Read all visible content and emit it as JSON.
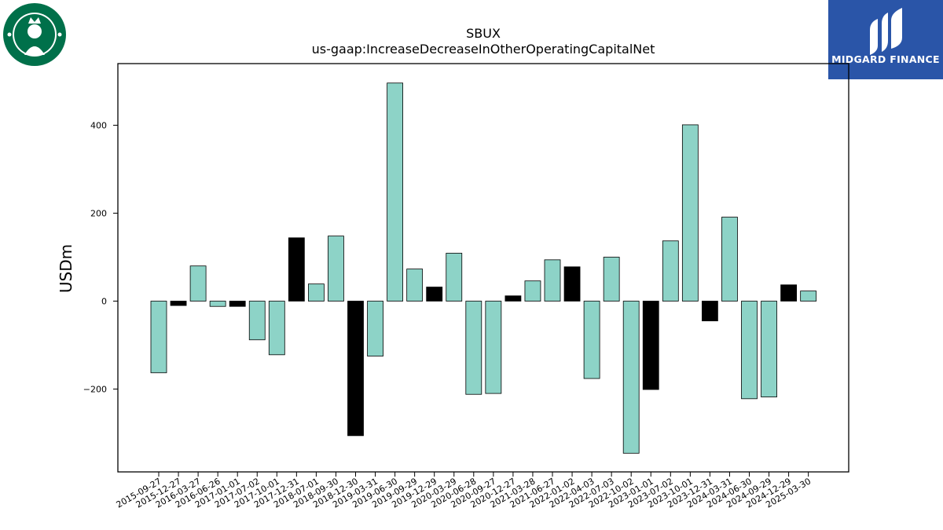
{
  "branding": {
    "left_logo": "starbucks-siren-logo",
    "right_logo": {
      "text": "MIDGARD FINANCE",
      "icon": "midgard-mark-icon",
      "background": "#2a55a8"
    },
    "left_logo_color": "#00704a"
  },
  "chart_data": {
    "type": "bar",
    "title": "SBUX",
    "subtitle": "us-gaap:IncreaseDecreaseInOtherOperatingCapitalNet",
    "xlabel": "",
    "ylabel": "USDm",
    "ylim": [
      -390,
      530
    ],
    "yticks": [
      -200,
      0,
      200,
      400
    ],
    "ytick_labels": [
      "−200",
      "0",
      "200",
      "400"
    ],
    "grid": false,
    "colors": {
      "default": "#8dd3c7",
      "highlight": "#000000",
      "edge": "#000000"
    },
    "categories": [
      "2015-09-27",
      "2015-12-27",
      "2016-03-27",
      "2016-06-26",
      "2017-01-01",
      "2017-07-02",
      "2017-10-01",
      "2017-12-31",
      "2018-07-01",
      "2018-09-30",
      "2018-12-30",
      "2019-03-31",
      "2019-06-30",
      "2019-09-29",
      "2019-12-29",
      "2020-03-29",
      "2020-06-28",
      "2020-09-27",
      "2020-12-27",
      "2021-03-28",
      "2021-06-27",
      "2022-01-02",
      "2022-04-03",
      "2022-07-03",
      "2022-10-02",
      "2023-01-01",
      "2023-07-02",
      "2023-10-01",
      "2023-12-31",
      "2024-03-31",
      "2024-06-30",
      "2024-09-29",
      "2024-12-29",
      "2025-03-30"
    ],
    "values": [
      -163,
      -10,
      80,
      -12,
      -12,
      -88,
      -122,
      144,
      39,
      148,
      -306,
      -125,
      496,
      73,
      32,
      109,
      -212,
      -210,
      12,
      46,
      94,
      78,
      -176,
      100,
      -346,
      -201,
      137,
      401,
      -45,
      191,
      -222,
      -218,
      37,
      23
    ],
    "highlight": [
      false,
      true,
      false,
      false,
      true,
      false,
      false,
      true,
      false,
      false,
      true,
      false,
      false,
      false,
      true,
      false,
      false,
      false,
      true,
      false,
      false,
      true,
      false,
      false,
      false,
      true,
      false,
      false,
      true,
      false,
      false,
      false,
      true,
      false
    ]
  }
}
